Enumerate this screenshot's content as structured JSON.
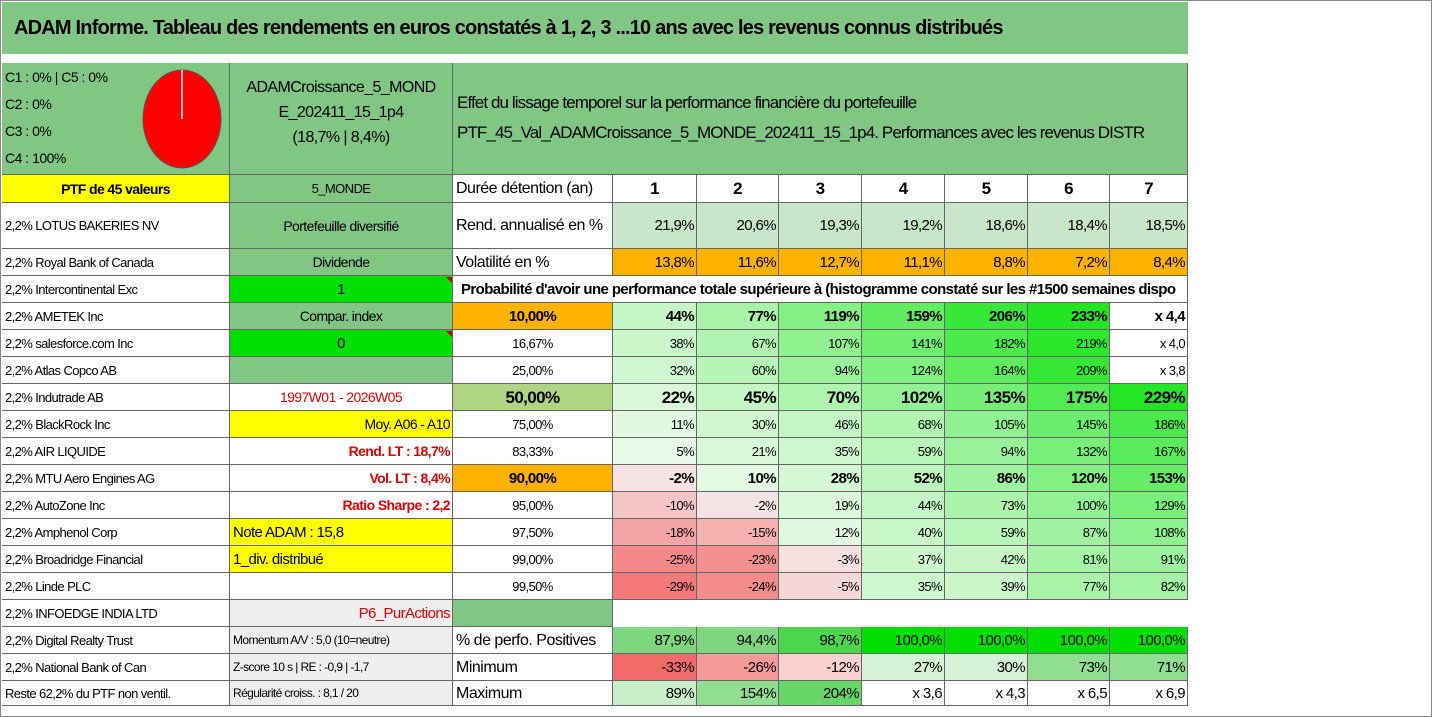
{
  "title": "ADAM Informe. Tableau des rendements en euros constatés à 1, 2, 3 ...10 ans avec les revenus connus distribués",
  "legend": [
    "C1 : 0% | C5 : 0%",
    "C2 : 0%",
    "C3 : 0%",
    "C4 : 100%"
  ],
  "pie": {
    "slices": [
      {
        "label": "C4",
        "value": 100,
        "color": "#ff0000"
      }
    ]
  },
  "fund": {
    "name_line1": "ADAMCroissance_5_MOND",
    "name_line2": "E_202411_15_1p4",
    "name_line3": "(18,7% | 8,4%)",
    "desc_line1": "Effet du lissage temporel sur la performance financière du portefeuille",
    "desc_line2": "PTF_45_Val_ADAMCroissance_5_MONDE_202411_15_1p4. Performances avec les revenus DISTR"
  },
  "ptf_label": "PTF de 45 valeurs",
  "holdings": [
    "2,2% LOTUS BAKERIES NV",
    "2,2% Royal Bank of Canada",
    "2,2% Intercontinental Exc",
    "2,2% AMETEK Inc",
    "2,2% salesforce.com Inc",
    "2,2% Atlas Copco AB",
    "2,2% Indutrade AB",
    "2,2% BlackRock Inc",
    "2,2% AIR LIQUIDE",
    "2,2% MTU Aero Engines AG",
    "2,2% AutoZone Inc",
    "2,2% Amphenol Corp",
    "2,2% Broadridge Financial",
    "2,2% Linde PLC",
    "2,2% INFOEDGE INDIA LTD",
    "2,2% Digital Realty Trust",
    "2,2% National Bank of Can",
    "Reste 62,2% du PTF non ventil."
  ],
  "params": {
    "zone": "5_MONDE",
    "diversif": "Portefeuille diversifié",
    "dividende": "Dividende",
    "dividende_val": "1",
    "compar": "Compar. index",
    "compar_val": "0",
    "periode": "1997W01 - 2026W05",
    "moy": "Moy. A06 - A10",
    "rend_lt": "Rend. LT : 18,7%",
    "vol_lt": "Vol. LT : 8,4%",
    "sharpe": "Ratio Sharpe : 2,2",
    "note": "Note ADAM : 15,8",
    "div_distrib": "1_div. distribué",
    "p6": "P6_PurActions",
    "momentum": "Momentum A/V : 5,0 (10=neutre)",
    "zscore": "Z-score 10 s | RE : -0,9 | -1,7",
    "regularite": "Régularité croiss. : 8,1 / 20"
  },
  "table": {
    "duree_label": "Durée détention (an)",
    "years": [
      "1",
      "2",
      "3",
      "4",
      "5",
      "6",
      "7"
    ],
    "rend_label": "Rend. annualisé en %",
    "rend": [
      "21,9%",
      "20,6%",
      "19,3%",
      "19,2%",
      "18,6%",
      "18,4%",
      "18,5%"
    ],
    "vol_label": "Volatilité en %",
    "vol": [
      "13,8%",
      "11,6%",
      "12,7%",
      "11,1%",
      "8,8%",
      "7,2%",
      "8,4%"
    ],
    "prob_label": "Probabilité d'avoir une performance totale supérieure à (histogramme constaté sur les #1500 semaines dispo",
    "prob_rows": [
      {
        "p": "10,00%",
        "vals": [
          "44%",
          "77%",
          "119%",
          "159%",
          "206%",
          "233%",
          "x 4,4"
        ]
      },
      {
        "p": "16,67%",
        "vals": [
          "38%",
          "67%",
          "107%",
          "141%",
          "182%",
          "219%",
          "x 4,0"
        ]
      },
      {
        "p": "25,00%",
        "vals": [
          "32%",
          "60%",
          "94%",
          "124%",
          "164%",
          "209%",
          "x 3,8"
        ]
      },
      {
        "p": "50,00%",
        "vals": [
          "22%",
          "45%",
          "70%",
          "102%",
          "135%",
          "175%",
          "229%"
        ]
      },
      {
        "p": "75,00%",
        "vals": [
          "11%",
          "30%",
          "46%",
          "68%",
          "105%",
          "145%",
          "186%"
        ]
      },
      {
        "p": "83,33%",
        "vals": [
          "5%",
          "21%",
          "35%",
          "59%",
          "94%",
          "132%",
          "167%"
        ]
      },
      {
        "p": "90,00%",
        "vals": [
          "-2%",
          "10%",
          "28%",
          "52%",
          "86%",
          "120%",
          "153%"
        ]
      },
      {
        "p": "95,00%",
        "vals": [
          "-10%",
          "-2%",
          "19%",
          "44%",
          "73%",
          "100%",
          "129%"
        ]
      },
      {
        "p": "97,50%",
        "vals": [
          "-18%",
          "-15%",
          "12%",
          "40%",
          "59%",
          "87%",
          "108%"
        ]
      },
      {
        "p": "99,00%",
        "vals": [
          "-25%",
          "-23%",
          "-3%",
          "37%",
          "42%",
          "81%",
          "91%"
        ]
      },
      {
        "p": "99,50%",
        "vals": [
          "-29%",
          "-24%",
          "-5%",
          "35%",
          "39%",
          "77%",
          "82%"
        ]
      }
    ],
    "pos_label": "% de perfo. Positives",
    "pos": [
      "87,9%",
      "94,4%",
      "98,7%",
      "100,0%",
      "100,0%",
      "100,0%",
      "100,0%"
    ],
    "min_label": "Minimum",
    "min": [
      "-33%",
      "-26%",
      "-12%",
      "27%",
      "30%",
      "73%",
      "71%"
    ],
    "max_label": "Maximum",
    "max": [
      "89%",
      "154%",
      "204%",
      "x 3,6",
      "x 4,3",
      "x 6,5",
      "x 6,9"
    ]
  }
}
